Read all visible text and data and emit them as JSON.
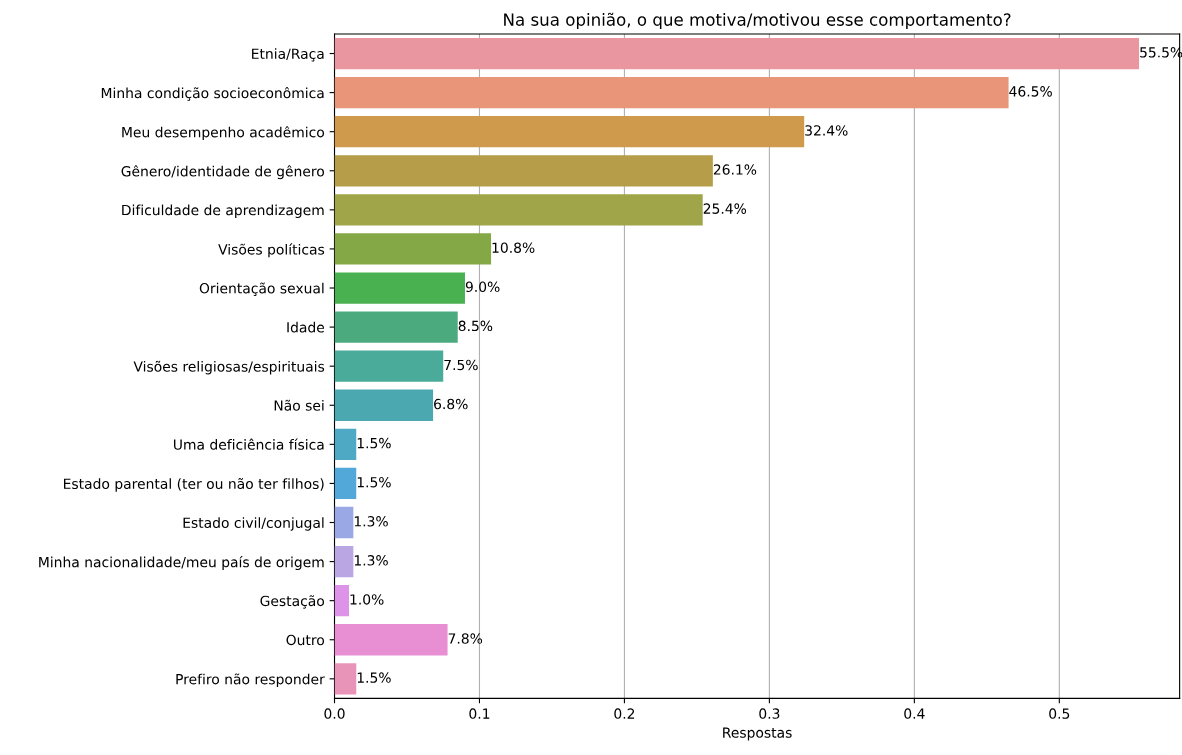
{
  "chart_data": {
    "type": "bar",
    "orientation": "horizontal",
    "title": "Na sua opinião, o que motiva/motivou esse comportamento?",
    "xlabel": "Respostas",
    "categories": [
      "Etnia/Raça",
      "Minha condição socioeconômica",
      "Meu desempenho acadêmico",
      "Gênero/identidade de gênero",
      "Dificuldade de aprendizagem",
      "Visões políticas",
      "Orientação sexual",
      "Idade",
      "Visões religiosas/espirituais",
      "Não sei",
      "Uma deficiência física",
      "Estado parental (ter ou não ter filhos)",
      "Estado civil/conjugal",
      "Minha nacionalidade/meu país de origem",
      "Gestação",
      "Outro",
      "Prefiro não responder"
    ],
    "values": [
      0.555,
      0.465,
      0.324,
      0.261,
      0.254,
      0.108,
      0.09,
      0.085,
      0.075,
      0.068,
      0.015,
      0.015,
      0.013,
      0.013,
      0.01,
      0.078,
      0.015
    ],
    "value_labels": [
      "55.5%",
      "46.5%",
      "32.4%",
      "26.1%",
      "25.4%",
      "10.8%",
      "9.0%",
      "8.5%",
      "7.5%",
      "6.8%",
      "1.5%",
      "1.5%",
      "1.3%",
      "1.3%",
      "1.0%",
      "7.8%",
      "1.5%"
    ],
    "colors": [
      "#ea96a0",
      "#e8957a",
      "#d09a4d",
      "#b59d4a",
      "#a0a54a",
      "#84a845",
      "#49b150",
      "#4bab7e",
      "#4aab9a",
      "#4ba8b0",
      "#4ea9c4",
      "#52a8d8",
      "#9aa8e5",
      "#bba6e4",
      "#dd93e8",
      "#e88fd4",
      "#e894b8"
    ],
    "xlim": [
      0,
      0.583
    ],
    "xticks": [
      {
        "value": 0,
        "label": "0.0"
      },
      0.1,
      0.2,
      0.3,
      0.4,
      0.5
    ],
    "grid": "x"
  }
}
